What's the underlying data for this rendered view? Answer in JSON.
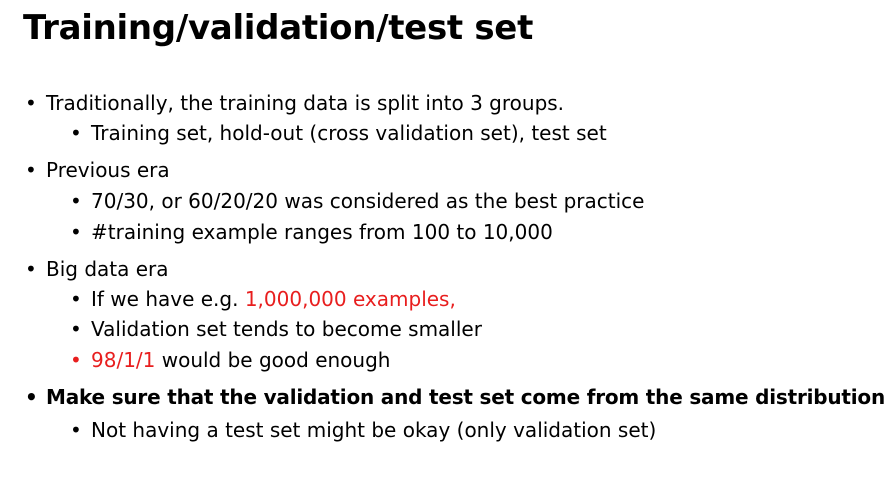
{
  "slide": {
    "title": "Training/validation/test set",
    "bullet_symbol": "•",
    "accent_color": "#e81e1e",
    "items": [
      {
        "text": "Traditionally, the training data is split into 3 groups.",
        "sub": [
          {
            "text": "Training set, hold-out (cross validation set), test set"
          }
        ]
      },
      {
        "text": "Previous era",
        "sub": [
          {
            "text": "70/30, or 60/20/20 was considered as the best practice"
          },
          {
            "text": "#training example ranges from 100 to 10,000"
          }
        ]
      },
      {
        "text": "Big data era",
        "sub": [
          {
            "text": "If we have e.g. ",
            "highlight": "1,000,000 examples,"
          },
          {
            "text": "Validation set tends to become smaller"
          },
          {
            "highlight": "98/1/1",
            "text": " would be good enough"
          }
        ]
      },
      {
        "text": "Make sure that the validation and test set come from the same distribution",
        "sub": [
          {
            "text": "Not having a test set might be okay (only validation set)"
          }
        ]
      }
    ]
  }
}
